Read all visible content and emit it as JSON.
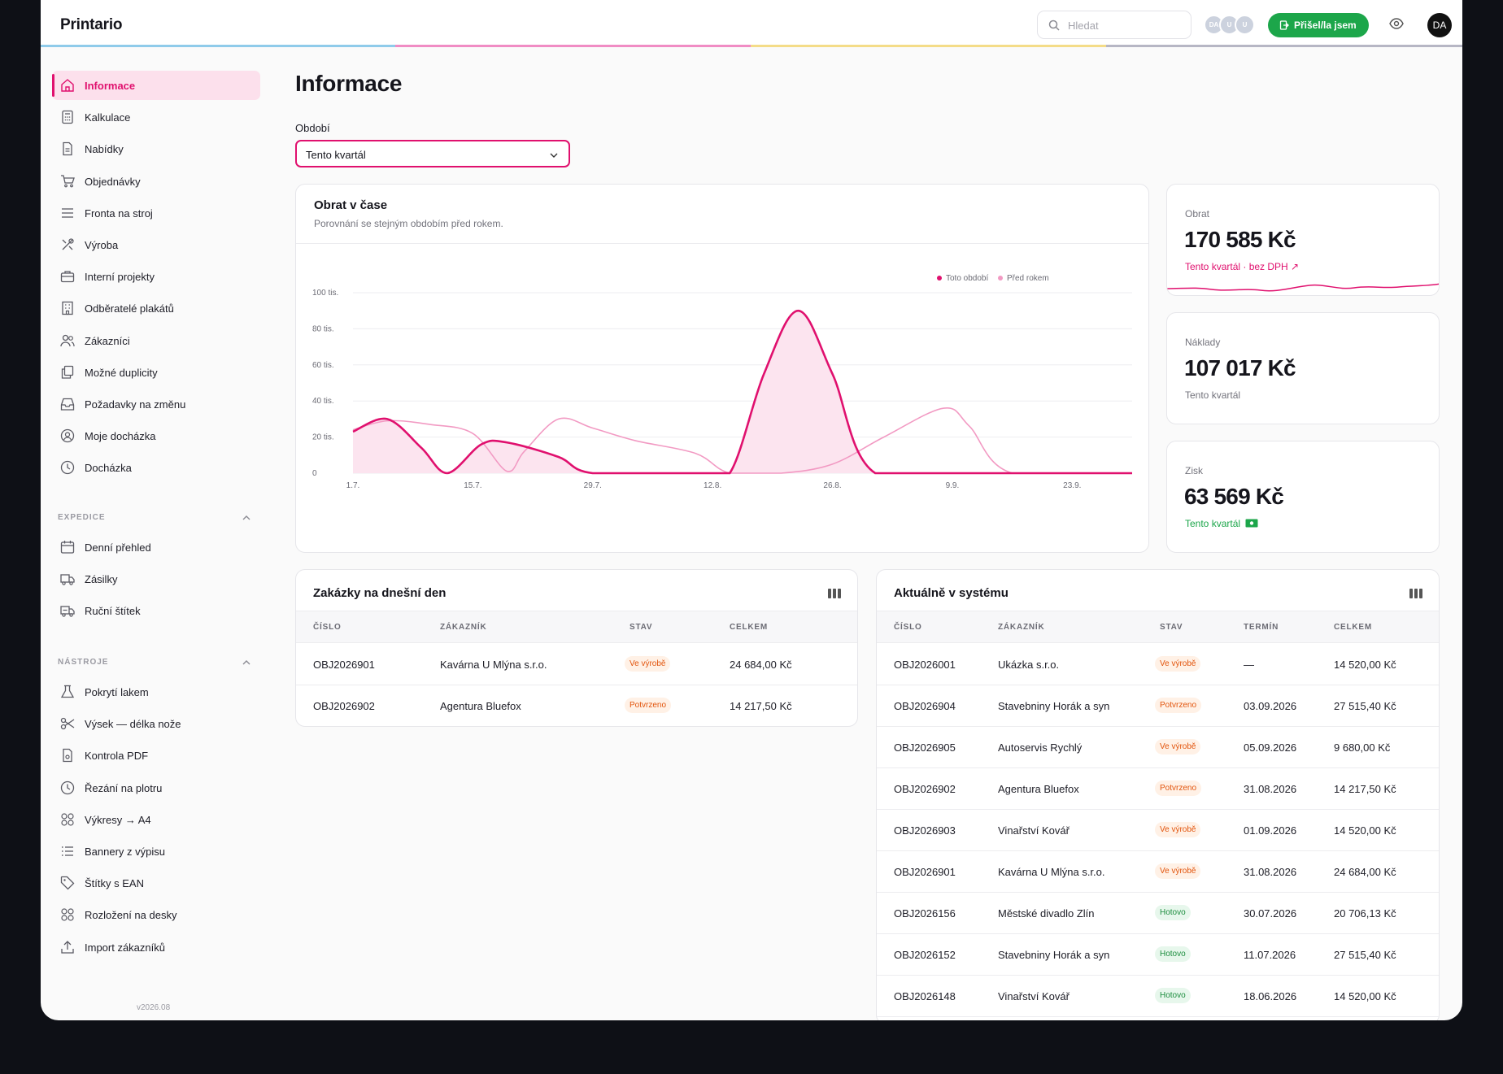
{
  "app": {
    "name": "Printario",
    "version": "v2026.08"
  },
  "header": {
    "search_placeholder": "Hledat",
    "avatars": [
      "DA",
      "U",
      "U"
    ],
    "checkin_label": "Přišel/la jsem",
    "user_initials": "DA",
    "stripe_colors": [
      "#8fcbea",
      "#f08cc4",
      "#f4dc88",
      "#b6b6c4"
    ]
  },
  "sidebar": {
    "main": [
      {
        "label": "Informace",
        "icon": "home-icon",
        "active": true
      },
      {
        "label": "Kalkulace",
        "icon": "calculator-icon"
      },
      {
        "label": "Nabídky",
        "icon": "document-icon"
      },
      {
        "label": "Objednávky",
        "icon": "cart-icon"
      },
      {
        "label": "Fronta na stroj",
        "icon": "queue-icon"
      },
      {
        "label": "Výroba",
        "icon": "tools-icon"
      },
      {
        "label": "Interní projekty",
        "icon": "briefcase-icon"
      },
      {
        "label": "Odběratelé plakátů",
        "icon": "building-icon"
      },
      {
        "label": "Zákazníci",
        "icon": "users-icon"
      },
      {
        "label": "Možné duplicity",
        "icon": "copy-icon"
      },
      {
        "label": "Požadavky na změnu",
        "icon": "inbox-icon"
      },
      {
        "label": "Moje docházka",
        "icon": "user-circle-icon"
      },
      {
        "label": "Docházka",
        "icon": "clock-icon"
      }
    ],
    "section_expedice": "EXPEDICE",
    "expedice": [
      {
        "label": "Denní přehled",
        "icon": "calendar-icon"
      },
      {
        "label": "Zásilky",
        "icon": "truck-icon"
      },
      {
        "label": "Ruční štítek",
        "icon": "truck-label-icon"
      }
    ],
    "section_nastroje": "NÁSTROJE",
    "nastroje": [
      {
        "label": "Pokrytí lakem",
        "icon": "flask-icon"
      },
      {
        "label": "Výsek — délka nože",
        "icon": "scissors-icon"
      },
      {
        "label": "Kontrola PDF",
        "icon": "pdf-icon"
      },
      {
        "label": "Řezání na plotru",
        "icon": "clock-icon"
      },
      {
        "label": "Výkresy → A4",
        "icon": "grid-icon"
      },
      {
        "label": "Bannery z výpisu",
        "icon": "list-icon"
      },
      {
        "label": "Štítky s EAN",
        "icon": "tag-icon"
      },
      {
        "label": "Rozložení na desky",
        "icon": "grid-icon"
      },
      {
        "label": "Import zákazníků",
        "icon": "upload-icon"
      }
    ]
  },
  "page": {
    "title": "Informace",
    "period_label": "Období",
    "period_value": "Tento kvartál"
  },
  "chart_card": {
    "title": "Obrat v čase",
    "subtitle": "Porovnání se stejným obdobím před rokem."
  },
  "chart_data": {
    "type": "area",
    "x_labels": [
      "1.7.",
      "15.7.",
      "29.7.",
      "12.8.",
      "26.8.",
      "9.9.",
      "23.9."
    ],
    "y_ticks": [
      "0",
      "20 tis.",
      "40 tis.",
      "60 tis.",
      "80 tis.",
      "100 tis."
    ],
    "ylim": [
      0,
      100000
    ],
    "legend": [
      "Toto období",
      "Před rokem"
    ],
    "legend_position": "top-right",
    "grid": true,
    "colors": {
      "current": "#e0106e",
      "previous": "#f29ac3"
    },
    "series": [
      {
        "name": "Toto období",
        "points": [
          [
            0,
            23000
          ],
          [
            4,
            30000
          ],
          [
            8,
            14000
          ],
          [
            11,
            0
          ],
          [
            15,
            16000
          ],
          [
            18,
            17000
          ],
          [
            24,
            9000
          ],
          [
            28,
            0
          ],
          [
            40,
            0
          ],
          [
            44,
            0
          ],
          [
            48,
            55000
          ],
          [
            52,
            90000
          ],
          [
            56,
            55000
          ],
          [
            61,
            0
          ],
          [
            74,
            0
          ],
          [
            91,
            0
          ]
        ]
      },
      {
        "name": "Před rokem",
        "points": [
          [
            0,
            24000
          ],
          [
            4,
            29000
          ],
          [
            9,
            27000
          ],
          [
            14,
            22000
          ],
          [
            18,
            1000
          ],
          [
            20,
            12000
          ],
          [
            24,
            30000
          ],
          [
            28,
            25000
          ],
          [
            33,
            18000
          ],
          [
            40,
            11000
          ],
          [
            44,
            0
          ],
          [
            50,
            0
          ],
          [
            56,
            5000
          ],
          [
            62,
            20000
          ],
          [
            69,
            36000
          ],
          [
            72,
            26000
          ],
          [
            77,
            0
          ],
          [
            91,
            0
          ]
        ]
      }
    ]
  },
  "kpis": {
    "obrat": {
      "label": "Obrat",
      "value": "170 585 Kč",
      "sub": "Tento kvartál · bez DPH ↗"
    },
    "naklady": {
      "label": "Náklady",
      "value": "107 017 Kč",
      "sub": "Tento kvartál"
    },
    "zisk": {
      "label": "Zisk",
      "value": "63 569 Kč",
      "sub": "Tento kvartál"
    }
  },
  "today_table": {
    "title": "Zakázky na dnešní den",
    "columns": [
      "ČÍSLO",
      "ZÁKAZNÍK",
      "STAV",
      "CELKEM"
    ],
    "rows": [
      {
        "id": "OBJ2026901",
        "customer": "Kavárna U Mlýna s.r.o.",
        "status": "Ve výrobě",
        "total": "24 684,00 Kč"
      },
      {
        "id": "OBJ2026902",
        "customer": "Agentura Bluefox",
        "status": "Potvrzeno",
        "total": "14 217,50 Kč"
      }
    ]
  },
  "system_table": {
    "title": "Aktuálně v systému",
    "columns": [
      "ČÍSLO",
      "ZÁKAZNÍK",
      "STAV",
      "TERMÍN",
      "CELKEM"
    ],
    "rows": [
      {
        "id": "OBJ2026001",
        "customer": "Ukázka s.r.o.",
        "status": "Ve výrobě",
        "due": "—",
        "total": "14 520,00 Kč"
      },
      {
        "id": "OBJ2026904",
        "customer": "Stavebniny Horák a syn",
        "status": "Potvrzeno",
        "due": "03.09.2026",
        "total": "27 515,40 Kč"
      },
      {
        "id": "OBJ2026905",
        "customer": "Autoservis Rychlý",
        "status": "Ve výrobě",
        "due": "05.09.2026",
        "total": "9 680,00 Kč"
      },
      {
        "id": "OBJ2026902",
        "customer": "Agentura Bluefox",
        "status": "Potvrzeno",
        "due": "31.08.2026",
        "total": "14 217,50 Kč"
      },
      {
        "id": "OBJ2026903",
        "customer": "Vinařství Kovář",
        "status": "Ve výrobě",
        "due": "01.09.2026",
        "total": "14 520,00 Kč"
      },
      {
        "id": "OBJ2026901",
        "customer": "Kavárna U Mlýna s.r.o.",
        "status": "Ve výrobě",
        "due": "31.08.2026",
        "total": "24 684,00 Kč"
      },
      {
        "id": "OBJ2026156",
        "customer": "Městské divadlo Zlín",
        "status": "Hotovo",
        "due": "30.07.2026",
        "total": "20 706,13 Kč"
      },
      {
        "id": "OBJ2026152",
        "customer": "Stavebniny Horák a syn",
        "status": "Hotovo",
        "due": "11.07.2026",
        "total": "27 515,40 Kč"
      },
      {
        "id": "OBJ2026148",
        "customer": "Vinařství Kovář",
        "status": "Hotovo",
        "due": "18.06.2026",
        "total": "14 520,00 Kč"
      }
    ]
  }
}
